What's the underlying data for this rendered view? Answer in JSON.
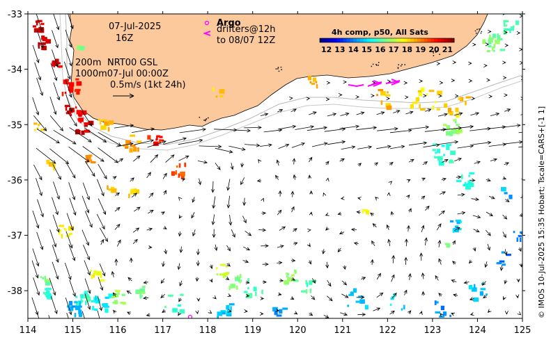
{
  "map": {
    "title_date": "07-Jul-2025",
    "title_time": "16Z",
    "depth_line1_left": "200m",
    "depth_line1_right": "NRT00 GSL",
    "depth_line2": "1000m07-Jul 00:00Z",
    "scale_label": "0.5m/s (1kt 24h)",
    "argo_label": "Argo",
    "drifters_label": "drifters@12h",
    "drifters_to": "to 08/07 12Z",
    "credit": "© IMOS 10-Jul-2025 15:35 Hobart; Tscale=CARS+[-1 1]",
    "region": {
      "lon_min": 114,
      "lon_max": 125,
      "lat_min": -38.5,
      "lat_max": -33
    }
  },
  "colorbar": {
    "title": "4h comp, p50, All Sats",
    "ticks": [
      "12",
      "13",
      "14",
      "15",
      "16",
      "17",
      "18",
      "19",
      "20",
      "21"
    ],
    "min": 11.5,
    "max": 21.5
  },
  "axes": {
    "x_ticks": [
      "114",
      "115",
      "116",
      "117",
      "118",
      "119",
      "120",
      "121",
      "122",
      "123",
      "124",
      "125"
    ],
    "y_ticks": [
      "-33",
      "-34",
      "-35",
      "-36",
      "-37",
      "-38"
    ]
  },
  "colors": {
    "land": "#fbc99c",
    "argo": "#ff00ff",
    "arrow": "#000000"
  }
}
